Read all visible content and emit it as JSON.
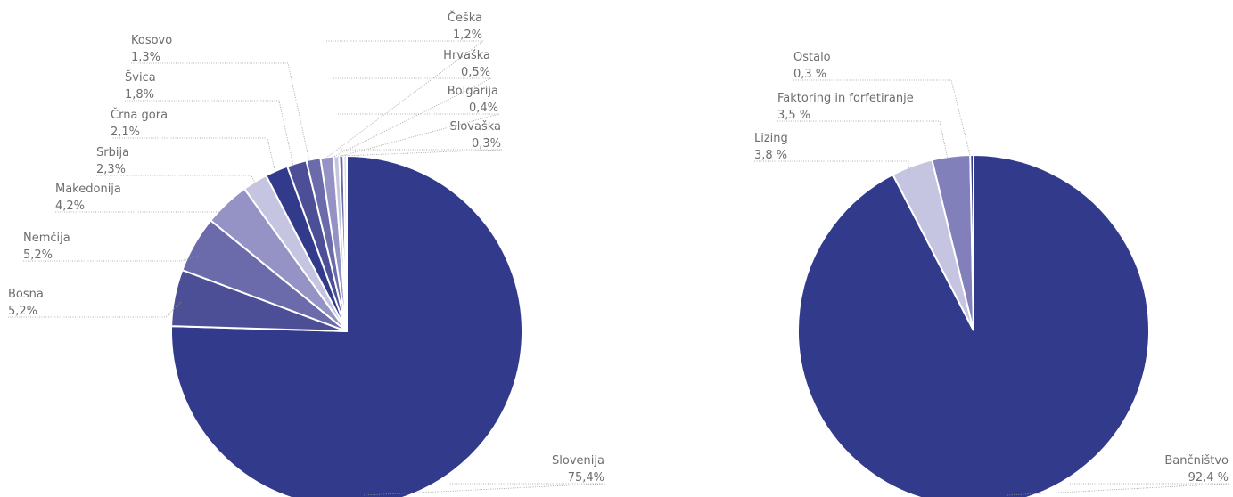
{
  "colors": {
    "primary": "#323a8b",
    "secondary": "#4c4f96",
    "medium": "#6b6bab",
    "soft": "#9593c5",
    "light": "#c6c5e1",
    "pale": "#dcdcec",
    "label_text": "#6d6d6d"
  },
  "chart_data": [
    {
      "type": "pie",
      "labels": [
        "Slovenija",
        "Bosna",
        "Nemčija",
        "Makedonija",
        "Srbija",
        "Črna gora",
        "Švica",
        "Kosovo",
        "Češka",
        "Hrvaška",
        "Bolgarija",
        "Slovaška"
      ],
      "value_labels": [
        "75,4%",
        "5,2%",
        "5,2%",
        "4,2%",
        "2,3%",
        "2,1%",
        "1,8%",
        "1,3%",
        "1,2%",
        "0,5%",
        "0,4%",
        "0,3%"
      ],
      "values": [
        75.4,
        5.2,
        5.2,
        4.2,
        2.3,
        2.1,
        1.8,
        1.3,
        1.2,
        0.5,
        0.4,
        0.3
      ],
      "colors": [
        "#323a8b",
        "#4c4f96",
        "#6b6bab",
        "#9593c5",
        "#c6c5e1",
        "#323a8b",
        "#4c4f96",
        "#6b6bab",
        "#9593c5",
        "#c6c5e1",
        "#6b6bab",
        "#dcdcec"
      ]
    },
    {
      "type": "pie",
      "labels": [
        "Bančništvo",
        "Lizing",
        "Faktoring in forfetiranje",
        "Ostalo"
      ],
      "value_labels": [
        "92,4 %",
        "3,8 %",
        "3,5 %",
        "0,3 %"
      ],
      "values": [
        92.4,
        3.8,
        3.5,
        0.3
      ],
      "colors": [
        "#323a8b",
        "#c6c5e1",
        "#8180ba",
        "#323a8b"
      ]
    }
  ]
}
